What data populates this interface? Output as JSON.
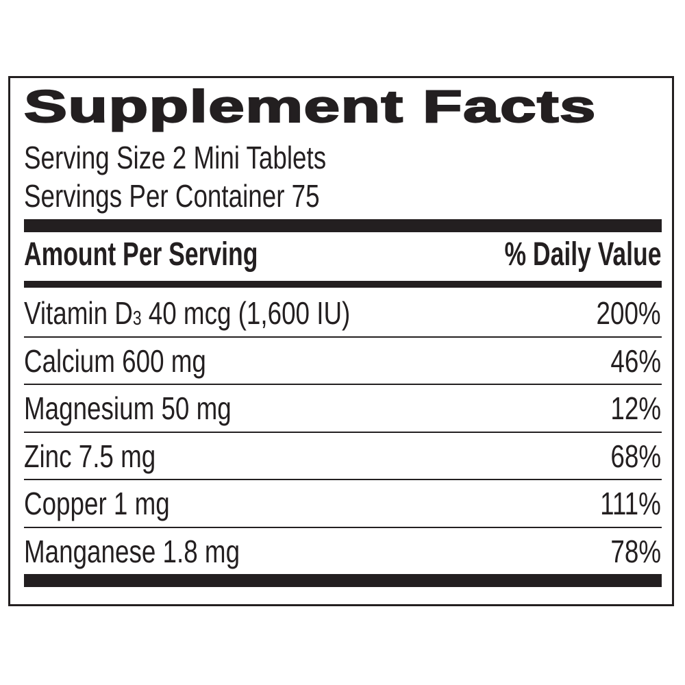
{
  "label": {
    "title": "Supplement Facts",
    "serving_size": "Serving Size 2 Mini Tablets",
    "servings_per_container": "Servings Per Container 75",
    "header": {
      "amount": "Amount Per Serving",
      "daily_value": "% Daily Value"
    },
    "rows": [
      {
        "name": "Vitamin D",
        "sub": "3",
        "rest": " 40 mcg (1,600 IU)",
        "dv": "200%"
      },
      {
        "name": "Calcium 600 mg",
        "dv": "46%"
      },
      {
        "name": "Magnesium 50 mg",
        "dv": "12%"
      },
      {
        "name": "Zinc 7.5 mg",
        "dv": "68%"
      },
      {
        "name": "Copper 1 mg",
        "dv": "111%"
      },
      {
        "name": "Manganese 1.8 mg",
        "dv": "78%"
      }
    ]
  },
  "colors": {
    "ink": "#231f20",
    "background": "#ffffff"
  }
}
